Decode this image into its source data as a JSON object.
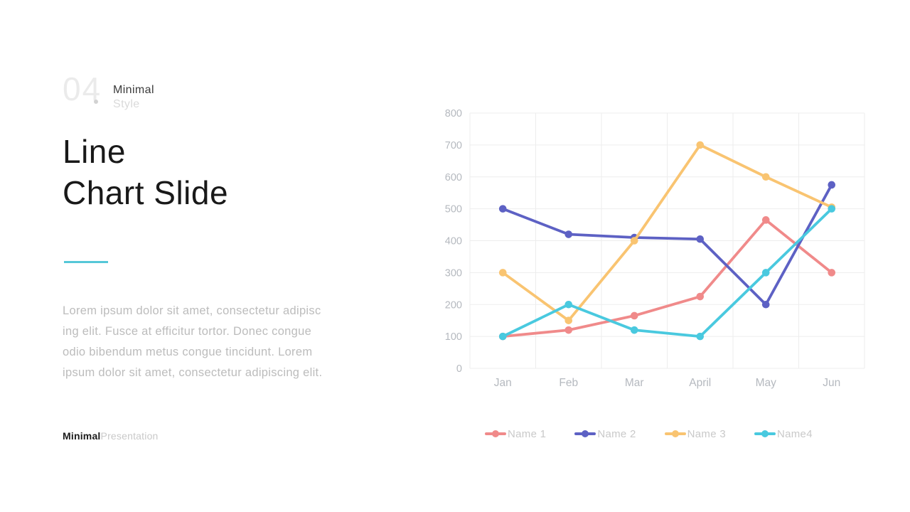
{
  "header": {
    "section_number": "04",
    "kicker_line1": "Minimal",
    "kicker_line2": "Style",
    "title_line1": "Line",
    "title_line2": "Chart Slide"
  },
  "body": {
    "lines": [
      "Lorem ipsum dolor sit amet, consectetur adipisc",
      "ing elit. Fusce at efficitur tortor. Donec congue",
      "odio bibendum metus congue tincidunt. Lorem",
      "ipsum dolor sit amet, consectetur adipiscing elit."
    ]
  },
  "footer": {
    "brand": "Minimal",
    "suffix": "Presentation"
  },
  "accent_color": "#55c7d8",
  "chart_data": {
    "type": "line",
    "title": "",
    "xlabel": "",
    "ylabel": "",
    "categories": [
      "Jan",
      "Feb",
      "Mar",
      "April",
      "May",
      "Jun"
    ],
    "series": [
      {
        "name": "Name 1",
        "color": "#F08A8A",
        "values": [
          100,
          120,
          165,
          225,
          465,
          300
        ]
      },
      {
        "name": "Name 2",
        "color": "#5D61C4",
        "values": [
          500,
          420,
          410,
          405,
          200,
          575
        ]
      },
      {
        "name": "Name 3",
        "color": "#F9C471",
        "values": [
          300,
          150,
          400,
          700,
          600,
          505
        ]
      },
      {
        "name": "Name4",
        "color": "#49C9DF",
        "values": [
          100,
          200,
          120,
          100,
          300,
          500
        ]
      }
    ],
    "ylim": [
      0,
      800
    ],
    "ytick_step": 100,
    "ytick_labels": [
      "0",
      "100",
      "200",
      "300",
      "400",
      "500",
      "600",
      "700",
      "800"
    ],
    "grid": true,
    "grid_color": "#ededed",
    "axis_label_color": "#b5b9bf",
    "legend_position": "bottom"
  }
}
